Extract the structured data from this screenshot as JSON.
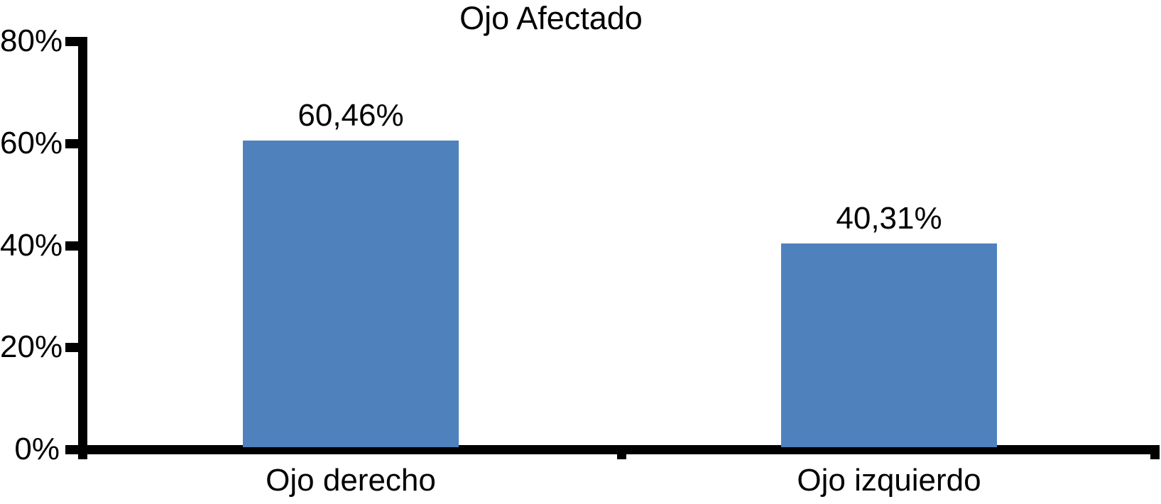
{
  "chart_data": {
    "type": "bar",
    "title": "Ojo Afectado",
    "categories": [
      "Ojo derecho",
      "Ojo izquierdo"
    ],
    "values": [
      60.46,
      40.31
    ],
    "value_labels": [
      "60,46%",
      "40,31%"
    ],
    "yticks": [
      80,
      60,
      40,
      20,
      0
    ],
    "ytick_labels": [
      "80%",
      "60%",
      "40%",
      "20%",
      "0%"
    ],
    "ylim": [
      0,
      80
    ],
    "xlabel": "",
    "ylabel": "",
    "grid": false,
    "data_labels_shown": true,
    "bar_color": "#4F81BD",
    "axis_color": "#000000",
    "text_color": "#000000",
    "background_color": "#FFFFFF"
  }
}
